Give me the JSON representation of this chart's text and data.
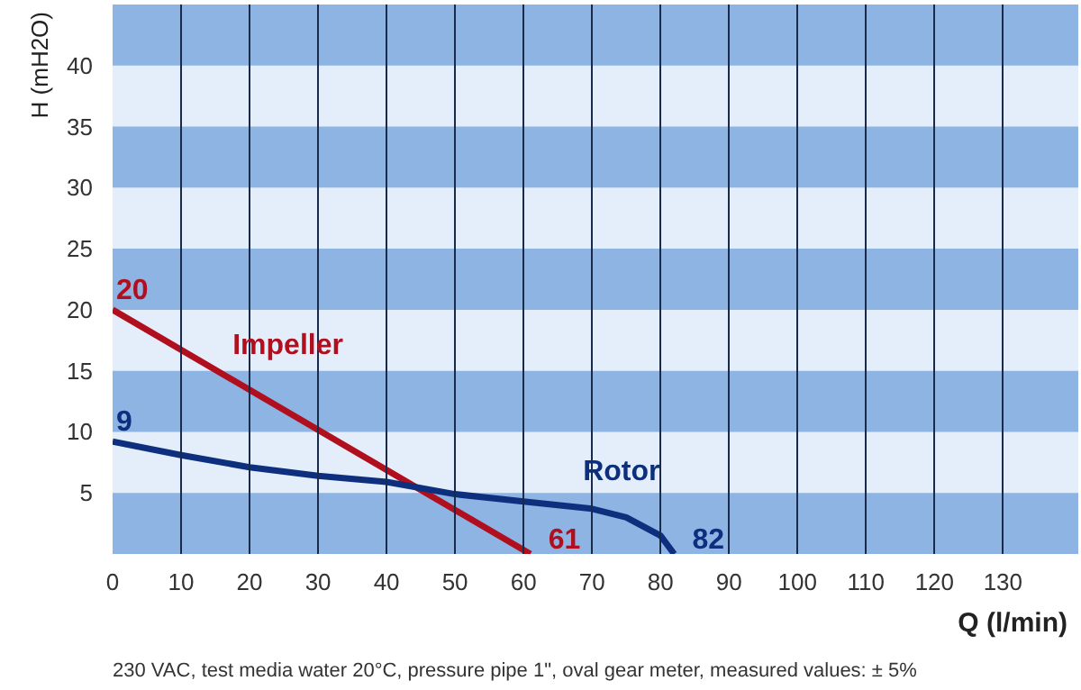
{
  "chart_data": {
    "type": "line",
    "xlabel": "Q (l/min)",
    "ylabel": "H (mH2O)",
    "series": [
      {
        "name": "Impeller",
        "color": "#b00f1e",
        "x": [
          0,
          61
        ],
        "values": [
          20,
          0
        ]
      },
      {
        "name": "Rotor",
        "color": "#0d2f7e",
        "x": [
          0,
          10,
          20,
          30,
          40,
          50,
          60,
          70,
          75,
          80,
          82
        ],
        "values": [
          9.2,
          8.1,
          7.1,
          6.4,
          5.9,
          4.9,
          4.3,
          3.7,
          3.0,
          1.5,
          0
        ]
      }
    ],
    "xlim": [
      0,
      141
    ],
    "ylim": [
      0,
      45
    ],
    "xticks": [
      0,
      10,
      20,
      30,
      40,
      50,
      60,
      70,
      80,
      90,
      100,
      110,
      120,
      130
    ],
    "yticks": [
      5,
      10,
      15,
      20,
      25,
      30,
      35,
      40
    ],
    "grid": "x",
    "marker": "none",
    "line_style": "solid",
    "bands": [
      {
        "axis": "y",
        "from": 0,
        "to": 5,
        "color": "#8db4e2"
      },
      {
        "axis": "y",
        "from": 10,
        "to": 15,
        "color": "#8db4e2"
      },
      {
        "axis": "y",
        "from": 20,
        "to": 25,
        "color": "#8db4e2"
      },
      {
        "axis": "y",
        "from": 30,
        "to": 35,
        "color": "#8db4e2"
      },
      {
        "axis": "y",
        "from": 40,
        "to": 45,
        "color": "#8db4e2"
      }
    ],
    "annotations": [
      {
        "text": "20",
        "x": 0,
        "y": 20
      },
      {
        "text": "9",
        "x": 0,
        "y": 9.2
      },
      {
        "text": "61",
        "x": 61,
        "y": 0
      },
      {
        "text": "82",
        "x": 82,
        "y": 0
      },
      "230 VAC, test media water 20°C, pressure pipe 1\", oval gear meter, measured values: ± 5%"
    ]
  }
}
